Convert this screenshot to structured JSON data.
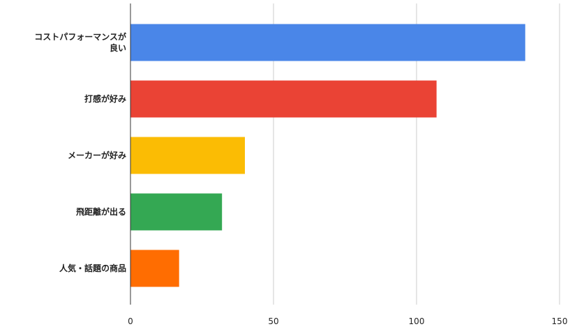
{
  "chart_data": {
    "type": "bar",
    "orientation": "horizontal",
    "title": "",
    "xlabel": "",
    "ylabel": "",
    "categories": [
      [
        "コストパフォーマンスが",
        "良い"
      ],
      [
        "打感が好み"
      ],
      [
        "メーカーが好み"
      ],
      [
        "飛距離が出る"
      ],
      [
        "人気・話題の商品"
      ]
    ],
    "values": [
      138,
      107,
      40,
      32,
      17
    ],
    "colors": [
      "#4A86E8",
      "#EA4335",
      "#FBBC04",
      "#34A853",
      "#FF6D01"
    ],
    "xlim": [
      0,
      150
    ],
    "xticks": [
      0,
      50,
      100,
      150
    ],
    "grid": true,
    "legend": "none"
  }
}
